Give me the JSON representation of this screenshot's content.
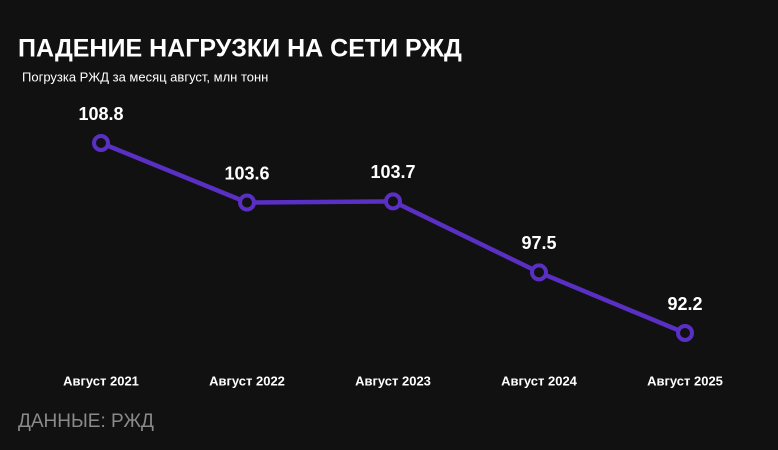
{
  "chart_data": {
    "type": "line",
    "title": "ПАДЕНИЕ НАГРУЗКИ НА СЕТИ РЖД",
    "subtitle": "Погрузка РЖД за месяц август, млн тонн",
    "source": "ДАННЫЕ: РЖД",
    "categories": [
      "Август 2021",
      "Август 2022",
      "Август 2023",
      "Август 2024",
      "Август 2025"
    ],
    "values": [
      108.8,
      103.6,
      103.7,
      97.5,
      92.2
    ],
    "color": "#5a2fc4"
  }
}
